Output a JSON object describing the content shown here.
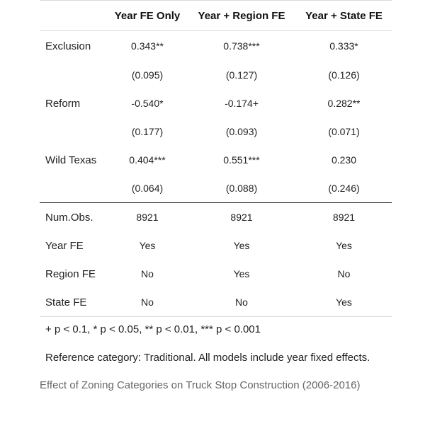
{
  "table": {
    "headers": [
      "",
      "Year FE Only",
      "Year + Region FE",
      "Year + State FE"
    ],
    "rows": [
      [
        "Exclusion",
        "0.343**",
        "0.738***",
        "0.333*"
      ],
      [
        "",
        "(0.095)",
        "(0.127)",
        "(0.126)"
      ],
      [
        "Reform",
        "-0.540*",
        "-0.174+",
        "0.282**"
      ],
      [
        "",
        "(0.177)",
        "(0.093)",
        "(0.071)"
      ],
      [
        "Wild Texas",
        "0.404***",
        "0.551***",
        "0.230"
      ],
      [
        "",
        "(0.064)",
        "(0.088)",
        "(0.246)"
      ],
      [
        "Num.Obs.",
        "8921",
        "8921",
        "8921"
      ],
      [
        "Year FE",
        "Yes",
        "Yes",
        "Yes"
      ],
      [
        "Region FE",
        "No",
        "Yes",
        "No"
      ],
      [
        "State FE",
        "No",
        "No",
        "Yes"
      ]
    ]
  },
  "notes": {
    "significance": "+ p < 0.1, * p < 0.05, ** p < 0.01, *** p < 0.001",
    "reference": "Reference category: Traditional. All models include year fixed effects."
  },
  "caption": "Effect of Zoning Categories on Truck Stop Construction (2006-2016)"
}
